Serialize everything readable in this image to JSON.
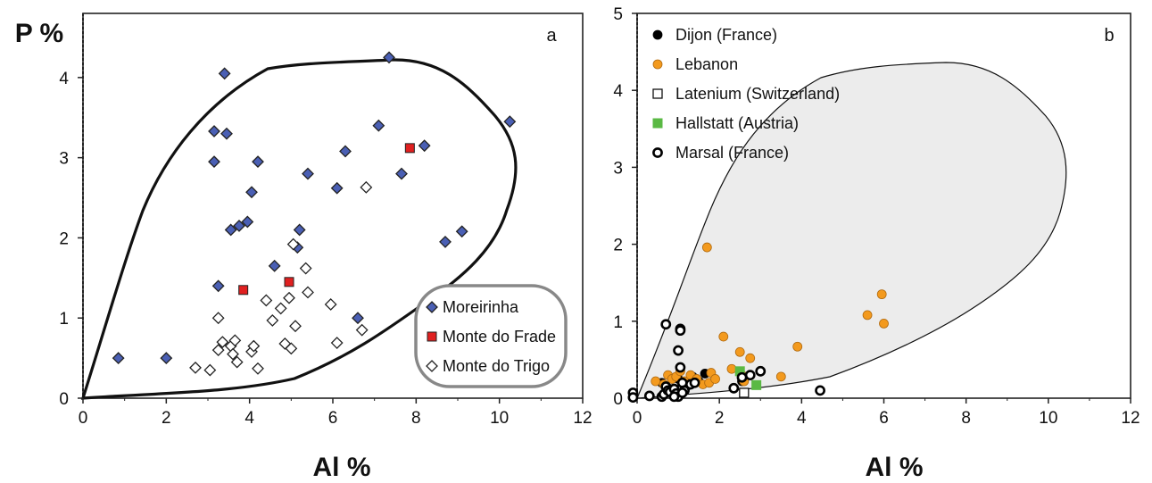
{
  "chart_data": [
    {
      "type": "scatter",
      "panel_label": "a",
      "xlabel": "Al  %",
      "ylabel": "P  %",
      "xlim": [
        0,
        12
      ],
      "ylim": [
        0,
        4.8
      ],
      "xticks": [
        "0",
        "2",
        "4",
        "6",
        "8",
        "10",
        "12"
      ],
      "yticks": [
        "0",
        "1",
        "2",
        "3",
        "4"
      ],
      "legend_position": "bottom-right",
      "series": [
        {
          "name": "Moreirinha",
          "marker": "diamond",
          "color": "#4a5fb4",
          "x": [
            0.85,
            2.0,
            3.4,
            3.15,
            3.45,
            3.15,
            4.2,
            4.05,
            3.55,
            3.75,
            3.95,
            3.25,
            4.6,
            5.15,
            5.2,
            5.4,
            6.1,
            6.3,
            6.6,
            7.1,
            7.35,
            7.65,
            8.2,
            8.7,
            9.1,
            10.25
          ],
          "y": [
            0.5,
            0.5,
            4.05,
            3.33,
            3.3,
            2.95,
            2.95,
            2.57,
            2.1,
            2.15,
            2.2,
            1.4,
            1.65,
            1.88,
            2.1,
            2.8,
            2.62,
            3.08,
            1.0,
            3.4,
            4.25,
            2.8,
            3.15,
            1.95,
            2.08,
            3.45
          ]
        },
        {
          "name": "Monte do Frade",
          "marker": "square",
          "color": "#e02020",
          "x": [
            3.85,
            4.95,
            7.85
          ],
          "y": [
            1.35,
            1.45,
            3.12
          ]
        },
        {
          "name": "Monte do Trigo",
          "marker": "open-diamond",
          "color": "#ffffff",
          "x": [
            2.7,
            3.05,
            3.25,
            3.35,
            3.25,
            3.55,
            3.6,
            3.7,
            3.65,
            4.05,
            4.1,
            4.2,
            4.4,
            4.55,
            4.75,
            4.85,
            4.95,
            5.0,
            5.05,
            5.1,
            5.35,
            5.4,
            5.95,
            6.1,
            6.7,
            6.8
          ],
          "y": [
            0.38,
            0.35,
            0.6,
            0.7,
            1.0,
            0.65,
            0.55,
            0.45,
            0.72,
            0.58,
            0.65,
            0.37,
            1.22,
            0.97,
            1.12,
            0.68,
            1.25,
            0.62,
            1.92,
            0.9,
            1.62,
            1.32,
            1.17,
            0.69,
            0.85,
            2.63
          ]
        }
      ]
    },
    {
      "type": "scatter",
      "panel_label": "b",
      "xlabel": "Al  %",
      "xlim": [
        0,
        12
      ],
      "ylim": [
        0,
        5
      ],
      "xticks": [
        "0",
        "2",
        "4",
        "6",
        "8",
        "10",
        "12"
      ],
      "yticks": [
        "0",
        "1",
        "2",
        "3",
        "4",
        "5"
      ],
      "legend_position": "top-left",
      "shaded_region": "field of panel a",
      "series": [
        {
          "name": "Dijon (France)",
          "marker": "filled-circle",
          "color": "#000000",
          "x": [
            0.6,
            0.8,
            1.0,
            1.2,
            1.35,
            1.5,
            1.65,
            2.55
          ],
          "y": [
            0.2,
            0.12,
            0.25,
            0.15,
            0.28,
            0.22,
            0.32,
            0.22
          ]
        },
        {
          "name": "Lebanon",
          "marker": "filled-circle",
          "color": "#f39a1e",
          "x": [
            0.45,
            0.65,
            0.75,
            0.85,
            0.95,
            1.05,
            1.15,
            1.3,
            1.45,
            1.6,
            1.75,
            1.8,
            1.9,
            2.1,
            2.3,
            2.5,
            2.55,
            2.75,
            2.6,
            3.5,
            3.9,
            1.7,
            5.6,
            5.95,
            6.0
          ],
          "y": [
            0.22,
            0.18,
            0.3,
            0.25,
            0.28,
            0.35,
            0.22,
            0.3,
            0.25,
            0.18,
            0.2,
            0.33,
            0.25,
            0.8,
            0.38,
            0.6,
            0.3,
            0.52,
            0.22,
            0.28,
            0.67,
            1.96,
            1.08,
            1.35,
            0.97
          ]
        },
        {
          "name": "Latenium (Switzerland)",
          "marker": "open-square",
          "color": "#ffffff",
          "x": [
            2.6
          ],
          "y": [
            0.07
          ]
        },
        {
          "name": "Hallstatt  (Austria)",
          "marker": "filled-square",
          "color": "#5ab944",
          "x": [
            2.5,
            2.9
          ],
          "y": [
            0.35,
            0.17
          ]
        },
        {
          "name": "Marsal (France)",
          "marker": "open-circle",
          "color": "#ffffff",
          "x": [
            -0.1,
            -0.1,
            0.3,
            0.6,
            0.65,
            0.7,
            0.75,
            0.8,
            0.9,
            0.95,
            1.0,
            1.05,
            1.1,
            1.15,
            1.3,
            1.4,
            1.0,
            1.05,
            1.05,
            2.35,
            2.55,
            2.75,
            3.0,
            4.45,
            0.7,
            0.9,
            1.1
          ],
          "y": [
            0.07,
            0.01,
            0.03,
            0.02,
            0.05,
            0.15,
            0.1,
            0.08,
            0.12,
            0.06,
            0.02,
            0.4,
            0.2,
            0.1,
            0.18,
            0.2,
            0.62,
            0.9,
            0.88,
            0.13,
            0.27,
            0.3,
            0.35,
            0.1,
            0.96,
            0.02,
            0.07
          ]
        }
      ]
    }
  ]
}
